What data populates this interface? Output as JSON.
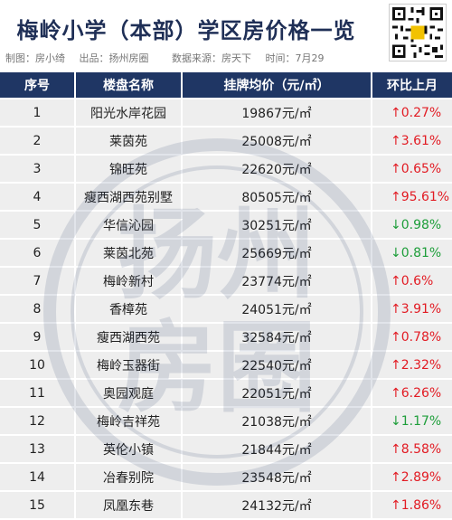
{
  "header": {
    "title": "梅岭小学（本部）学区房价格一览",
    "meta": {
      "maker": "制图：房小绮",
      "producer": "出品：扬州房圈",
      "source": "数据来源：房天下",
      "time": "时间：7月29"
    }
  },
  "watermark": {
    "line1": "扬州",
    "line2": "房圈"
  },
  "table": {
    "headers": [
      "序号",
      "楼盘名称",
      "挂牌均价（元/㎡）",
      "环比上月"
    ],
    "rows": [
      {
        "no": "1",
        "name": "阳光水岸花园",
        "price": "19867元/㎡",
        "change": "↑0.27%",
        "dir": "up"
      },
      {
        "no": "2",
        "name": "莱茵苑",
        "price": "25008元/㎡",
        "change": "↑3.61%",
        "dir": "up"
      },
      {
        "no": "3",
        "name": "锦旺苑",
        "price": "22620元/㎡",
        "change": "↑0.65%",
        "dir": "up"
      },
      {
        "no": "4",
        "name": "瘦西湖西苑别墅",
        "price": "80505元/㎡",
        "change": "↑95.61%",
        "dir": "up"
      },
      {
        "no": "5",
        "name": "华信沁园",
        "price": "30251元/㎡",
        "change": "↓0.98%",
        "dir": "down"
      },
      {
        "no": "6",
        "name": "莱茵北苑",
        "price": "25669元/㎡",
        "change": "↓0.81%",
        "dir": "down"
      },
      {
        "no": "7",
        "name": "梅岭新村",
        "price": "23774元/㎡",
        "change": "↑0.6%",
        "dir": "up"
      },
      {
        "no": "8",
        "name": "香樟苑",
        "price": "24051元/㎡",
        "change": "↑3.91%",
        "dir": "up"
      },
      {
        "no": "9",
        "name": "瘦西湖西苑",
        "price": "32584元/㎡",
        "change": "↑0.78%",
        "dir": "up"
      },
      {
        "no": "10",
        "name": "梅岭玉器街",
        "price": "22540元/㎡",
        "change": "↑2.32%",
        "dir": "up"
      },
      {
        "no": "11",
        "name": "奥园观庭",
        "price": "22051元/㎡",
        "change": "↑6.26%",
        "dir": "up"
      },
      {
        "no": "12",
        "name": "梅岭吉祥苑",
        "price": "21038元/㎡",
        "change": "↓1.17%",
        "dir": "down"
      },
      {
        "no": "13",
        "name": "英伦小镇",
        "price": "21844元/㎡",
        "change": "↑8.58%",
        "dir": "up"
      },
      {
        "no": "14",
        "name": "冶春别院",
        "price": "23548元/㎡",
        "change": "↑2.89%",
        "dir": "up"
      },
      {
        "no": "15",
        "name": "凤凰东巷",
        "price": "24132元/㎡",
        "change": "↑1.86%",
        "dir": "up"
      }
    ]
  },
  "colors": {
    "header_bg": "#1f3664",
    "row_bg": "#eeeeee",
    "up": "#e21b23",
    "down": "#1e9e3a",
    "title": "#1f2f56"
  }
}
